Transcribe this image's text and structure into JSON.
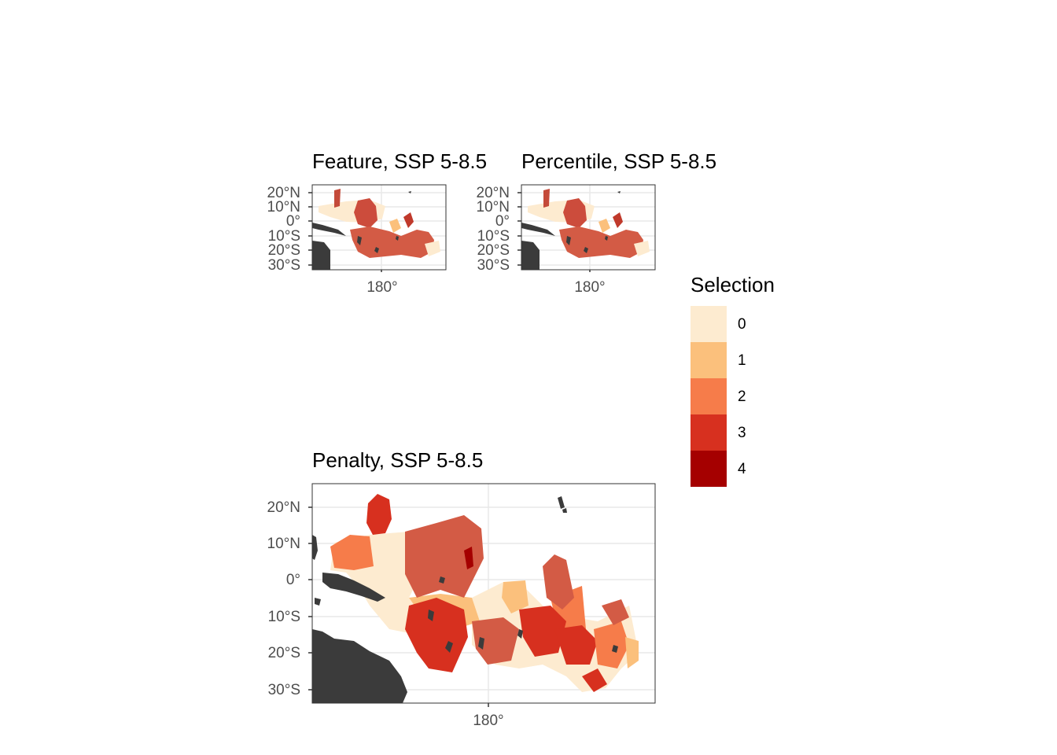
{
  "panels": {
    "feature": {
      "title": "Feature, SSP 5-8.5"
    },
    "percentile": {
      "title": "Percentile, SSP 5-8.5"
    },
    "penalty": {
      "title": "Penalty, SSP 5-8.5"
    }
  },
  "axes": {
    "small_y_ticks": [
      "20°N",
      "10°N",
      "0°",
      "10°S",
      "20°S",
      "30°S"
    ],
    "large_y_ticks": [
      "20°N",
      "10°N",
      "0°",
      "10°S",
      "20°S",
      "30°S"
    ],
    "x_tick": "180°"
  },
  "legend": {
    "title": "Selection",
    "items": [
      {
        "label": "0",
        "color": "#fdebd0"
      },
      {
        "label": "1",
        "color": "#fbc07c"
      },
      {
        "label": "2",
        "color": "#f67c4a"
      },
      {
        "label": "3",
        "color": "#d7301f"
      },
      {
        "label": "4",
        "color": "#a50000"
      }
    ]
  },
  "colors": {
    "land": "#3b3b3b",
    "grid": "#e8e8e8",
    "frame": "#333333"
  }
}
